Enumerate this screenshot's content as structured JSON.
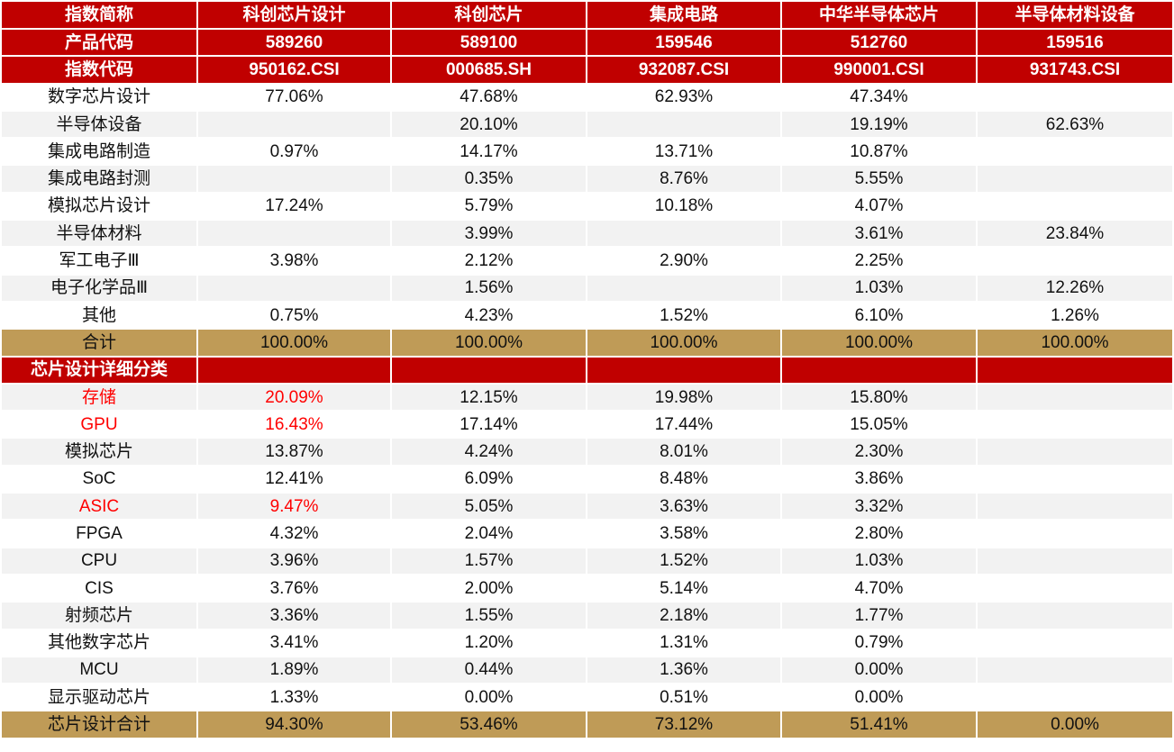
{
  "colors": {
    "header": "#C00000",
    "total": "#BF9B57",
    "stripe": "#F2F2F2",
    "highlight": "#FF0000"
  },
  "header_rows": [
    [
      "指数简称",
      "科创芯片设计",
      "科创芯片",
      "集成电路",
      "中华半导体芯片",
      "半导体材料设备"
    ],
    [
      "产品代码",
      "589260",
      "589100",
      "159546",
      "512760",
      "159516"
    ],
    [
      "指数代码",
      "950162.CSI",
      "000685.SH",
      "932087.CSI",
      "990001.CSI",
      "931743.CSI"
    ]
  ],
  "section1": [
    [
      "数字芯片设计",
      "77.06%",
      "47.68%",
      "62.93%",
      "47.34%",
      ""
    ],
    [
      "半导体设备",
      "",
      "20.10%",
      "",
      "19.19%",
      "62.63%"
    ],
    [
      "集成电路制造",
      "0.97%",
      "14.17%",
      "13.71%",
      "10.87%",
      ""
    ],
    [
      "集成电路封测",
      "",
      "0.35%",
      "8.76%",
      "5.55%",
      ""
    ],
    [
      "模拟芯片设计",
      "17.24%",
      "5.79%",
      "10.18%",
      "4.07%",
      ""
    ],
    [
      "半导体材料",
      "",
      "3.99%",
      "",
      "3.61%",
      "23.84%"
    ],
    [
      "军工电子Ⅲ",
      "3.98%",
      "2.12%",
      "2.90%",
      "2.25%",
      ""
    ],
    [
      "电子化学品Ⅲ",
      "",
      "1.56%",
      "",
      "1.03%",
      "12.26%"
    ],
    [
      "其他",
      "0.75%",
      "4.23%",
      "1.52%",
      "6.10%",
      "1.26%"
    ]
  ],
  "section1_total": [
    "合计",
    "100.00%",
    "100.00%",
    "100.00%",
    "100.00%",
    "100.00%"
  ],
  "section2_header": [
    "芯片设计详细分类",
    "",
    "",
    "",
    "",
    ""
  ],
  "section2": [
    [
      "存储",
      "20.09%",
      "12.15%",
      "19.98%",
      "15.80%",
      ""
    ],
    [
      "GPU",
      "16.43%",
      "17.14%",
      "17.44%",
      "15.05%",
      ""
    ],
    [
      "模拟芯片",
      "13.87%",
      "4.24%",
      "8.01%",
      "2.30%",
      ""
    ],
    [
      "SoC",
      "12.41%",
      "6.09%",
      "8.48%",
      "3.86%",
      ""
    ],
    [
      "ASIC",
      "9.47%",
      "5.05%",
      "3.63%",
      "3.32%",
      ""
    ],
    [
      "FPGA",
      "4.32%",
      "2.04%",
      "3.58%",
      "2.80%",
      ""
    ],
    [
      "CPU",
      "3.96%",
      "1.57%",
      "1.52%",
      "1.03%",
      ""
    ],
    [
      "CIS",
      "3.76%",
      "2.00%",
      "5.14%",
      "4.70%",
      ""
    ],
    [
      "射频芯片",
      "3.36%",
      "1.55%",
      "2.18%",
      "1.77%",
      ""
    ],
    [
      "其他数字芯片",
      "3.41%",
      "1.20%",
      "1.31%",
      "0.79%",
      ""
    ],
    [
      "MCU",
      "1.89%",
      "0.44%",
      "1.36%",
      "0.00%",
      ""
    ],
    [
      "显示驱动芯片",
      "1.33%",
      "0.00%",
      "0.51%",
      "0.00%",
      ""
    ]
  ],
  "section2_highlight_rows": [
    0,
    1,
    4
  ],
  "section2_total": [
    "芯片设计合计",
    "94.30%",
    "53.46%",
    "73.12%",
    "51.41%",
    "0.00%"
  ]
}
